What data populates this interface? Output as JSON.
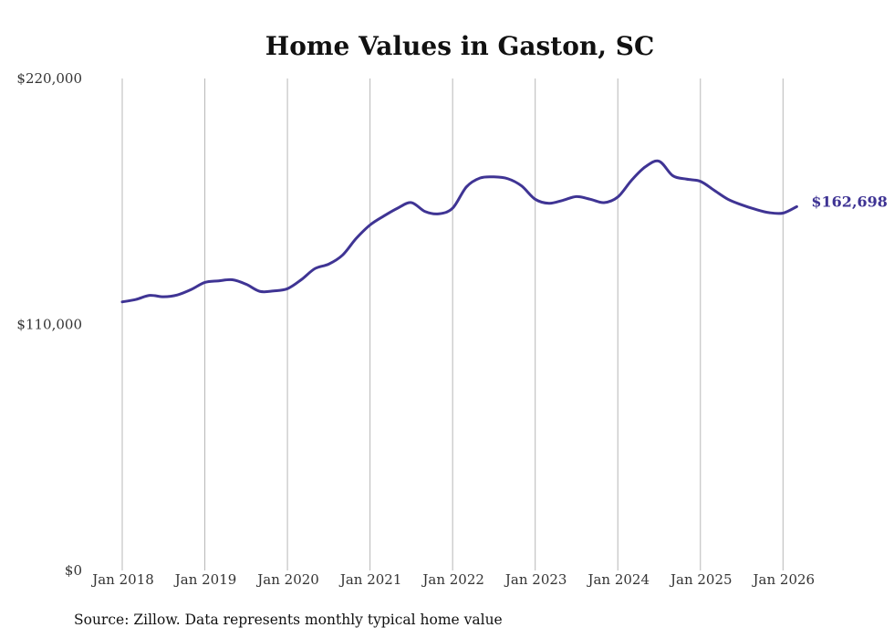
{
  "chart_data": {
    "type": "line",
    "title": "Home Values in Gaston, SC",
    "xlabel": "",
    "ylabel": "",
    "ylim": [
      0,
      220000
    ],
    "yticks": [
      {
        "value": 0,
        "label": "$0"
      },
      {
        "value": 110000,
        "label": "$110,000"
      },
      {
        "value": 220000,
        "label": "$220,000"
      }
    ],
    "xticks": [
      {
        "value": "2018-01",
        "label": "Jan 2018"
      },
      {
        "value": "2019-01",
        "label": "Jan 2019"
      },
      {
        "value": "2020-01",
        "label": "Jan 2020"
      },
      {
        "value": "2021-01",
        "label": "Jan 2021"
      },
      {
        "value": "2022-01",
        "label": "Jan 2022"
      },
      {
        "value": "2023-01",
        "label": "Jan 2023"
      },
      {
        "value": "2024-01",
        "label": "Jan 2024"
      },
      {
        "value": "2025-01",
        "label": "Jan 2025"
      },
      {
        "value": "2026-01",
        "label": "Jan 2026"
      }
    ],
    "grid": "vertical",
    "line_color": "#3f3494",
    "end_label": "$162,698",
    "series": [
      {
        "x": [
          "2018-01",
          "2018-03",
          "2018-05",
          "2018-07",
          "2018-09",
          "2018-11",
          "2019-01",
          "2019-03",
          "2019-05",
          "2019-07",
          "2019-09",
          "2019-11",
          "2020-01",
          "2020-03",
          "2020-05",
          "2020-07",
          "2020-09",
          "2020-11",
          "2021-01",
          "2021-03",
          "2021-05",
          "2021-07",
          "2021-09",
          "2021-11",
          "2022-01",
          "2022-03",
          "2022-05",
          "2022-07",
          "2022-09",
          "2022-11",
          "2023-01",
          "2023-03",
          "2023-05",
          "2023-07",
          "2023-09",
          "2023-11",
          "2024-01",
          "2024-03",
          "2024-05",
          "2024-07",
          "2024-09",
          "2024-11",
          "2025-01",
          "2025-03",
          "2025-05",
          "2025-07",
          "2025-09",
          "2025-11",
          "2026-01",
          "2026-03"
        ],
        "values": [
          120100,
          121200,
          123000,
          122400,
          123200,
          125600,
          128800,
          129500,
          130000,
          128000,
          124800,
          125000,
          126000,
          130000,
          135000,
          137000,
          141000,
          148500,
          154500,
          158500,
          162000,
          164500,
          160500,
          159500,
          162000,
          171500,
          175500,
          176000,
          175200,
          172000,
          166000,
          164200,
          165500,
          167200,
          166000,
          164500,
          167000,
          174500,
          180500,
          183000,
          176500,
          175000,
          174000,
          170000,
          166000,
          163500,
          161500,
          160000,
          159800,
          162698
        ]
      }
    ]
  },
  "footer": {
    "source": "Source: Zillow. Data represents monthly typical home value"
  }
}
